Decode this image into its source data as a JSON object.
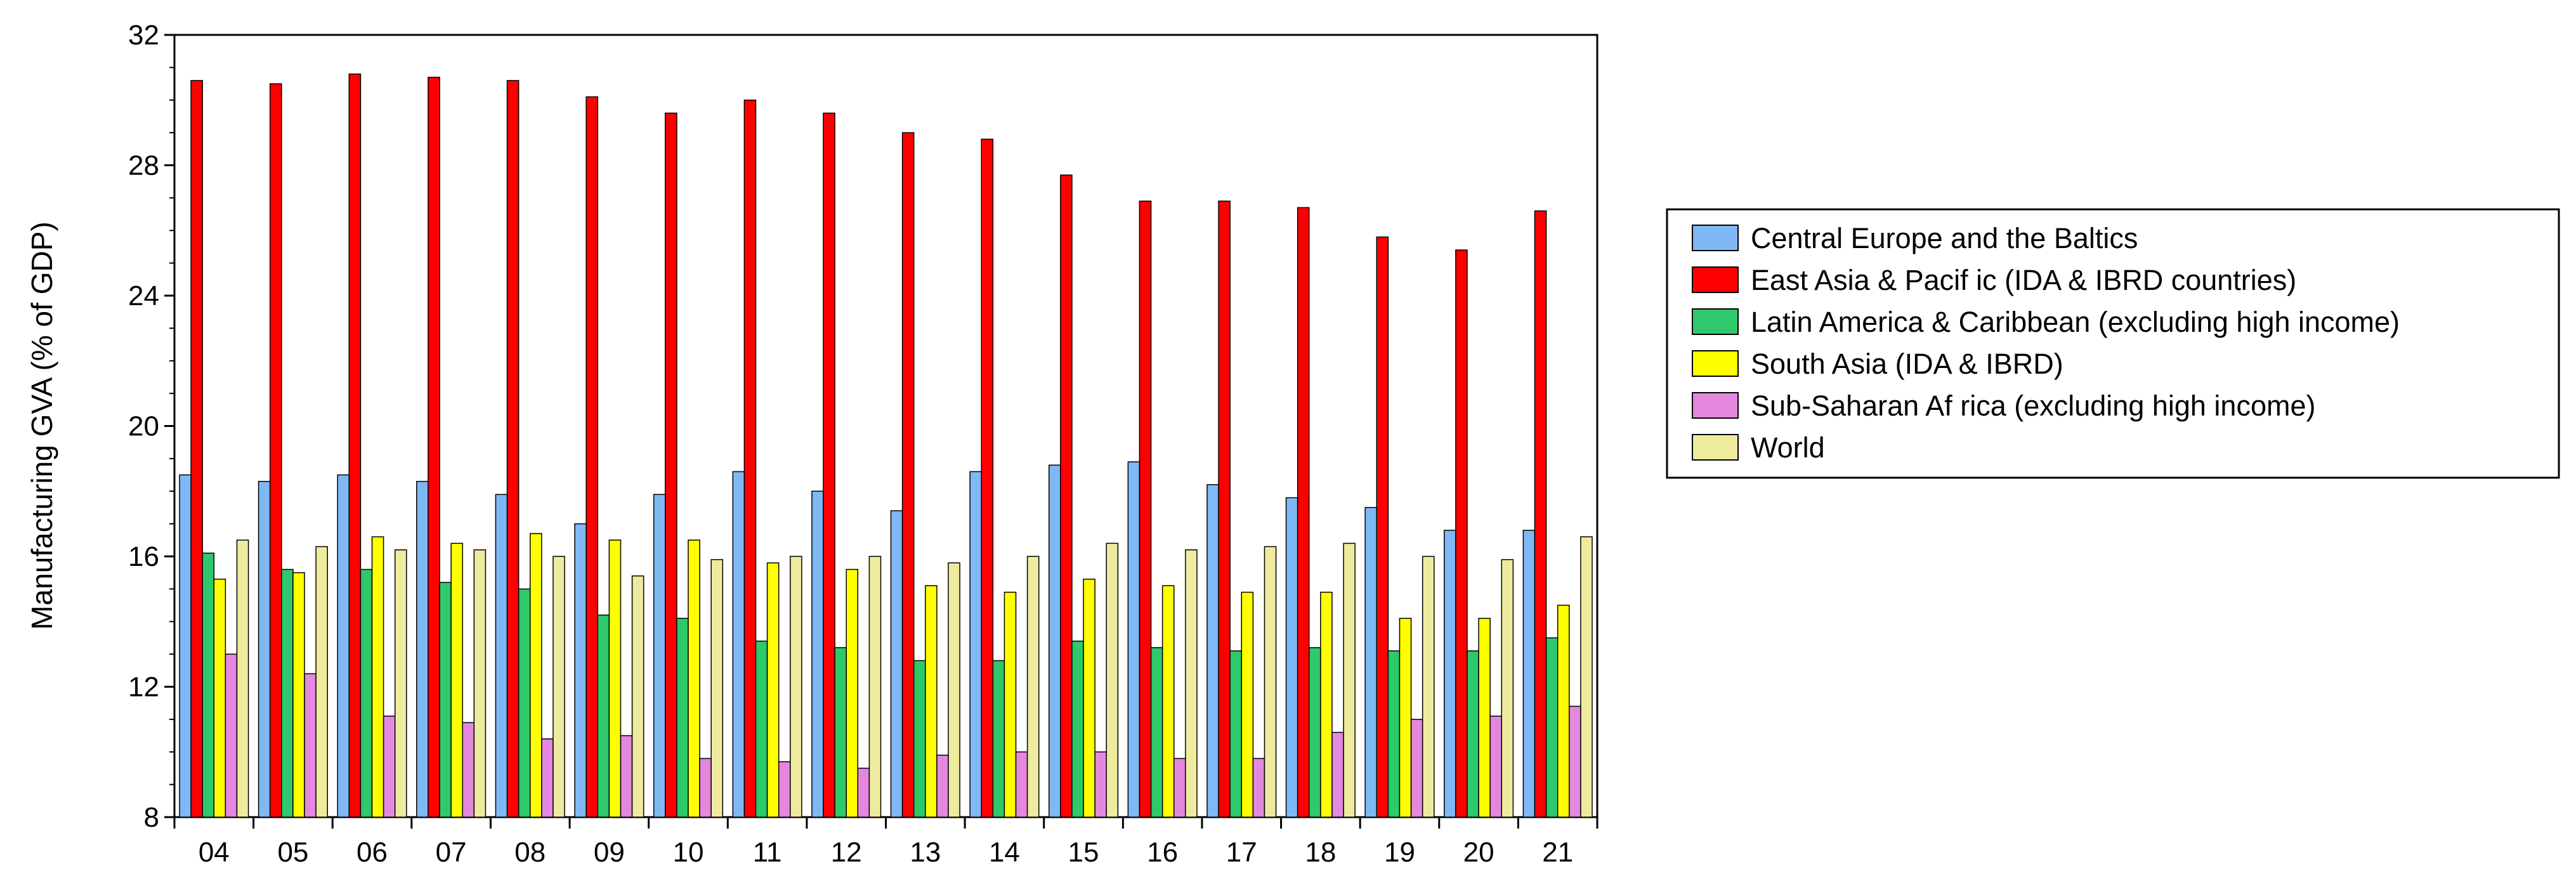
{
  "chart_data": {
    "type": "bar",
    "title": "",
    "xlabel": "",
    "ylabel": "Manufacturing GVA (% of GDP)",
    "ylim": [
      8,
      32
    ],
    "yticks": [
      8,
      12,
      16,
      20,
      24,
      28,
      32
    ],
    "grid": false,
    "legend_position": "right",
    "categories": [
      "04",
      "05",
      "06",
      "07",
      "08",
      "09",
      "10",
      "11",
      "12",
      "13",
      "14",
      "15",
      "16",
      "17",
      "18",
      "19",
      "20",
      "21"
    ],
    "series": [
      {
        "name": "Central Europe and the Baltics",
        "color": "#7EB8F5",
        "values": [
          18.5,
          18.3,
          18.5,
          18.3,
          17.9,
          17.0,
          17.9,
          18.6,
          18.0,
          17.4,
          18.6,
          18.8,
          18.9,
          18.2,
          17.8,
          17.5,
          16.8,
          16.8
        ]
      },
      {
        "name": "East Asia & Pacif ic (IDA & IBRD countries)",
        "color": "#FF0000",
        "values": [
          30.6,
          30.5,
          30.8,
          30.7,
          30.6,
          30.1,
          29.6,
          30.0,
          29.6,
          29.0,
          28.8,
          27.7,
          26.9,
          26.9,
          26.7,
          25.8,
          25.4,
          26.6
        ]
      },
      {
        "name": "Latin America & Caribbean (excluding high income)",
        "color": "#2EC96A",
        "values": [
          16.1,
          15.6,
          15.6,
          15.2,
          15.0,
          14.2,
          14.1,
          13.4,
          13.2,
          12.8,
          12.8,
          13.4,
          13.2,
          13.1,
          13.2,
          13.1,
          13.1,
          13.5
        ]
      },
      {
        "name": "South Asia (IDA & IBRD)",
        "color": "#FFFF00",
        "values": [
          15.3,
          15.5,
          16.6,
          16.4,
          16.7,
          16.5,
          16.5,
          15.8,
          15.6,
          15.1,
          14.9,
          15.3,
          15.1,
          14.9,
          14.9,
          14.1,
          14.1,
          14.5
        ]
      },
      {
        "name": "Sub-Saharan Af rica (excluding high income)",
        "color": "#E387DF",
        "values": [
          13.0,
          12.4,
          11.1,
          10.9,
          10.4,
          10.5,
          9.8,
          9.7,
          9.5,
          9.9,
          10.0,
          10.0,
          9.8,
          9.8,
          10.6,
          11.0,
          11.1,
          11.4
        ]
      },
      {
        "name": "World",
        "color": "#EFEB9E",
        "values": [
          16.5,
          16.3,
          16.2,
          16.2,
          16.0,
          15.4,
          15.9,
          16.0,
          16.0,
          15.8,
          16.0,
          16.4,
          16.2,
          16.3,
          16.4,
          16.0,
          15.9,
          16.6
        ]
      }
    ]
  }
}
